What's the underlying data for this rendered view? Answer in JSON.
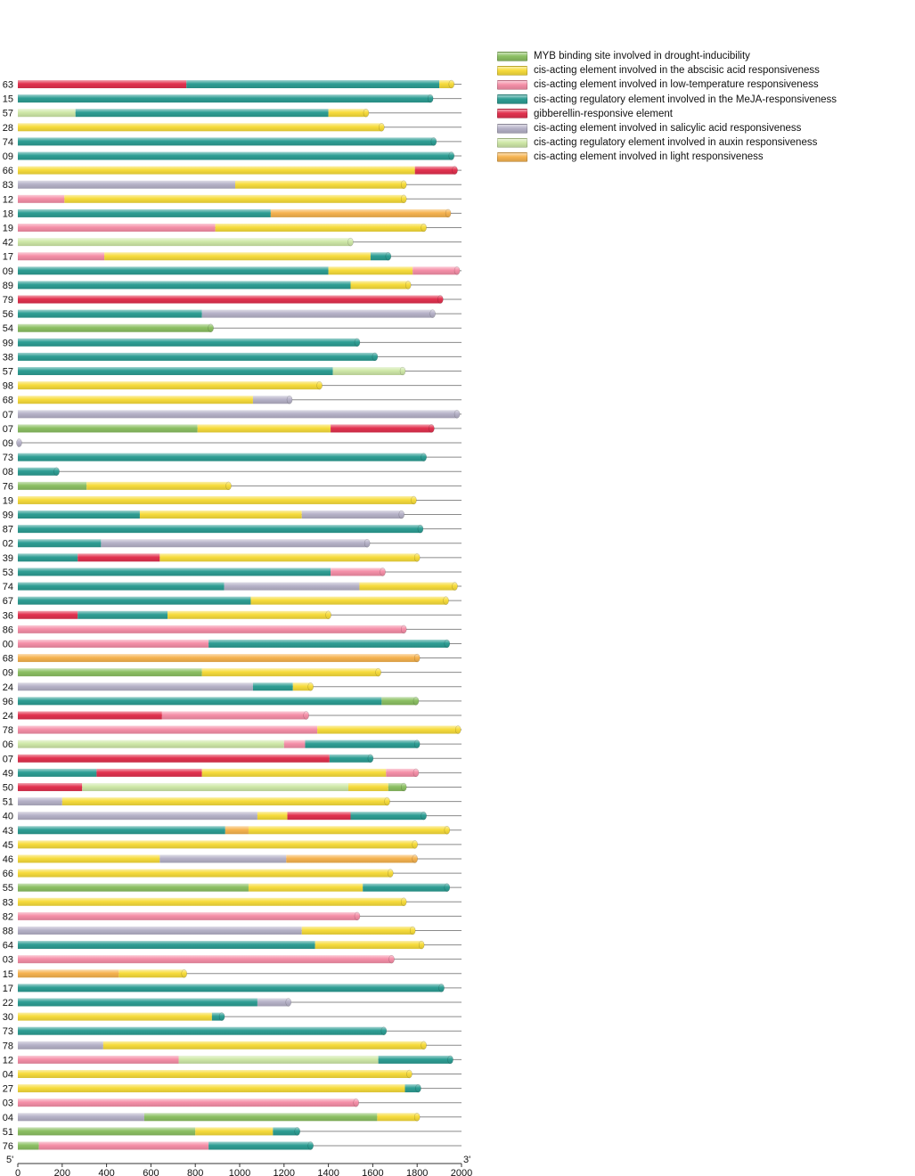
{
  "chart_data": {
    "type": "bar",
    "orientation": "horizontal-stacked-segments",
    "title": "",
    "xlabel": "",
    "ylabel": "",
    "xlim": [
      0,
      2000
    ],
    "x_ticks": [
      0,
      200,
      400,
      600,
      800,
      1000,
      1200,
      1400,
      1600,
      1800,
      2000
    ],
    "start_label": "5'",
    "end_label": "3'",
    "legend": [
      {
        "key": "myb",
        "label": "MYB binding site involved in drought-inducibility",
        "color": "#8cc063"
      },
      {
        "key": "aba",
        "label": "cis-acting element involved in the abscisic acid responsiveness",
        "color": "#f7dc3c"
      },
      {
        "key": "lt",
        "label": "cis-acting element involved in low-temperature responsiveness",
        "color": "#f58fa8"
      },
      {
        "key": "meja",
        "label": "cis-acting regulatory element involved in the MeJA-responsiveness",
        "color": "#2e9e94"
      },
      {
        "key": "ga",
        "label": "gibberellin-responsive element",
        "color": "#e2324f"
      },
      {
        "key": "sa",
        "label": "cis-acting element involved in salicylic acid responsiveness",
        "color": "#b6b2c8"
      },
      {
        "key": "aux",
        "label": "cis-acting regulatory element involved in auxin responsiveness",
        "color": "#cfe8a8"
      },
      {
        "key": "light",
        "label": "cis-acting element involved in light responsiveness",
        "color": "#f6b350"
      }
    ],
    "rows": [
      {
        "label": "63",
        "segments": [
          [
            "ga",
            0,
            760
          ],
          [
            "meja",
            760,
            1900
          ],
          [
            "aba",
            1900,
            1955
          ]
        ]
      },
      {
        "label": "15",
        "segments": [
          [
            "meja",
            0,
            1860
          ]
        ]
      },
      {
        "label": "57",
        "segments": [
          [
            "aux",
            0,
            260
          ],
          [
            "meja",
            260,
            1400
          ],
          [
            "aba",
            1400,
            1570
          ]
        ]
      },
      {
        "label": "28",
        "segments": [
          [
            "aba",
            0,
            1640
          ]
        ]
      },
      {
        "label": "74",
        "segments": [
          [
            "meja",
            0,
            1875
          ]
        ]
      },
      {
        "label": "09",
        "segments": [
          [
            "meja",
            0,
            1955
          ]
        ]
      },
      {
        "label": "66",
        "segments": [
          [
            "aba",
            0,
            1790
          ],
          [
            "ga",
            1790,
            1970
          ]
        ]
      },
      {
        "label": "83",
        "segments": [
          [
            "sa",
            0,
            980
          ],
          [
            "aba",
            980,
            1740
          ]
        ]
      },
      {
        "label": "12",
        "segments": [
          [
            "lt",
            0,
            210
          ],
          [
            "aba",
            210,
            1740
          ]
        ]
      },
      {
        "label": "18",
        "segments": [
          [
            "meja",
            0,
            1140
          ],
          [
            "light",
            1140,
            1940
          ]
        ]
      },
      {
        "label": "19",
        "segments": [
          [
            "lt",
            0,
            890
          ],
          [
            "aba",
            890,
            1830
          ]
        ]
      },
      {
        "label": "42",
        "segments": [
          [
            "aux",
            0,
            1500
          ]
        ]
      },
      {
        "label": "17",
        "segments": [
          [
            "lt",
            0,
            390
          ],
          [
            "aba",
            390,
            1590
          ],
          [
            "meja",
            1590,
            1670
          ]
        ]
      },
      {
        "label": "09",
        "segments": [
          [
            "meja",
            0,
            1400
          ],
          [
            "aba",
            1400,
            1780
          ],
          [
            "lt",
            1780,
            1980
          ]
        ]
      },
      {
        "label": "89",
        "segments": [
          [
            "meja",
            0,
            1500
          ],
          [
            "aba",
            1500,
            1760
          ]
        ]
      },
      {
        "label": "79",
        "segments": [
          [
            "ga",
            0,
            1905
          ]
        ]
      },
      {
        "label": "56",
        "segments": [
          [
            "meja",
            0,
            830
          ],
          [
            "sa",
            830,
            1870
          ]
        ]
      },
      {
        "label": "54",
        "segments": [
          [
            "myb",
            0,
            870
          ]
        ]
      },
      {
        "label": "99",
        "segments": [
          [
            "meja",
            0,
            1530
          ]
        ]
      },
      {
        "label": "38",
        "segments": [
          [
            "meja",
            0,
            1610
          ]
        ]
      },
      {
        "label": "57",
        "segments": [
          [
            "meja",
            0,
            1420
          ],
          [
            "aux",
            1420,
            1735
          ]
        ]
      },
      {
        "label": "98",
        "segments": [
          [
            "aba",
            0,
            1360
          ]
        ]
      },
      {
        "label": "68",
        "segments": [
          [
            "aba",
            0,
            1060
          ],
          [
            "sa",
            1060,
            1225
          ]
        ]
      },
      {
        "label": "07",
        "segments": [
          [
            "sa",
            0,
            1980
          ]
        ]
      },
      {
        "label": "07",
        "segments": [
          [
            "myb",
            0,
            810
          ],
          [
            "aba",
            810,
            1410
          ],
          [
            "ga",
            1410,
            1865
          ]
        ]
      },
      {
        "label": "09",
        "segments": [
          [
            "sa",
            0,
            5
          ]
        ]
      },
      {
        "label": "73",
        "segments": [
          [
            "meja",
            0,
            1830
          ]
        ]
      },
      {
        "label": "08",
        "segments": [
          [
            "meja",
            0,
            175
          ]
        ]
      },
      {
        "label": "76",
        "segments": [
          [
            "myb",
            0,
            310
          ],
          [
            "aba",
            310,
            950
          ]
        ]
      },
      {
        "label": "19",
        "segments": [
          [
            "aba",
            0,
            1785
          ]
        ]
      },
      {
        "label": "99",
        "segments": [
          [
            "meja",
            0,
            550
          ],
          [
            "aba",
            550,
            1280
          ],
          [
            "sa",
            1280,
            1730
          ]
        ]
      },
      {
        "label": "87",
        "segments": [
          [
            "meja",
            0,
            1815
          ]
        ]
      },
      {
        "label": "02",
        "segments": [
          [
            "meja",
            0,
            375
          ],
          [
            "sa",
            375,
            1575
          ]
        ]
      },
      {
        "label": "39",
        "segments": [
          [
            "meja",
            0,
            270
          ],
          [
            "ga",
            270,
            640
          ],
          [
            "aba",
            640,
            1800
          ]
        ]
      },
      {
        "label": "53",
        "segments": [
          [
            "meja",
            0,
            1410
          ],
          [
            "lt",
            1410,
            1645
          ]
        ]
      },
      {
        "label": "74",
        "segments": [
          [
            "meja",
            0,
            930
          ],
          [
            "sa",
            930,
            1540
          ],
          [
            "aba",
            1540,
            1970
          ]
        ]
      },
      {
        "label": "67",
        "segments": [
          [
            "meja",
            0,
            1050
          ],
          [
            "aba",
            1050,
            1930
          ]
        ]
      },
      {
        "label": "36",
        "segments": [
          [
            "ga",
            0,
            270
          ],
          [
            "meja",
            270,
            675
          ],
          [
            "aba",
            675,
            1400
          ]
        ]
      },
      {
        "label": "86",
        "segments": [
          [
            "lt",
            0,
            1740
          ]
        ]
      },
      {
        "label": "00",
        "segments": [
          [
            "lt",
            0,
            860
          ],
          [
            "meja",
            860,
            1935
          ]
        ]
      },
      {
        "label": "68",
        "segments": [
          [
            "light",
            0,
            1800
          ]
        ]
      },
      {
        "label": "09",
        "segments": [
          [
            "myb",
            0,
            830
          ],
          [
            "aba",
            830,
            1625
          ]
        ]
      },
      {
        "label": "24",
        "segments": [
          [
            "sa",
            0,
            1060
          ],
          [
            "meja",
            1060,
            1240
          ],
          [
            "aba",
            1240,
            1320
          ]
        ]
      },
      {
        "label": "96",
        "segments": [
          [
            "meja",
            0,
            1640
          ],
          [
            "myb",
            1640,
            1795
          ]
        ]
      },
      {
        "label": "24",
        "segments": [
          [
            "ga",
            0,
            650
          ],
          [
            "lt",
            650,
            1300
          ]
        ]
      },
      {
        "label": "78",
        "segments": [
          [
            "lt",
            0,
            1350
          ],
          [
            "aba",
            1350,
            1985
          ]
        ]
      },
      {
        "label": "06",
        "segments": [
          [
            "aux",
            0,
            1200
          ],
          [
            "lt",
            1200,
            1295
          ],
          [
            "meja",
            1295,
            1800
          ]
        ]
      },
      {
        "label": "07",
        "segments": [
          [
            "ga",
            0,
            1405
          ],
          [
            "meja",
            1405,
            1590
          ]
        ]
      },
      {
        "label": "49",
        "segments": [
          [
            "meja",
            0,
            355
          ],
          [
            "ga",
            355,
            830
          ],
          [
            "aba",
            830,
            1660
          ],
          [
            "lt",
            1660,
            1795
          ]
        ]
      },
      {
        "label": "50",
        "segments": [
          [
            "ga",
            0,
            290
          ],
          [
            "aux",
            290,
            1490
          ],
          [
            "aba",
            1490,
            1670
          ],
          [
            "myb",
            1670,
            1740
          ]
        ]
      },
      {
        "label": "51",
        "segments": [
          [
            "sa",
            0,
            200
          ],
          [
            "aba",
            200,
            1665
          ]
        ]
      },
      {
        "label": "40",
        "segments": [
          [
            "sa",
            0,
            1080
          ],
          [
            "aba",
            1080,
            1215
          ],
          [
            "ga",
            1215,
            1500
          ],
          [
            "meja",
            1500,
            1830
          ]
        ]
      },
      {
        "label": "43",
        "segments": [
          [
            "meja",
            0,
            935
          ],
          [
            "light",
            935,
            1040
          ],
          [
            "aba",
            1040,
            1935
          ]
        ]
      },
      {
        "label": "45",
        "segments": [
          [
            "aba",
            0,
            1790
          ]
        ]
      },
      {
        "label": "46",
        "segments": [
          [
            "aba",
            0,
            640
          ],
          [
            "sa",
            640,
            1210
          ],
          [
            "light",
            1210,
            1790
          ]
        ]
      },
      {
        "label": "66",
        "segments": [
          [
            "aba",
            0,
            1680
          ]
        ]
      },
      {
        "label": "55",
        "segments": [
          [
            "myb",
            0,
            1040
          ],
          [
            "aba",
            1040,
            1555
          ],
          [
            "meja",
            1555,
            1935
          ]
        ]
      },
      {
        "label": "83",
        "segments": [
          [
            "aba",
            0,
            1740
          ]
        ]
      },
      {
        "label": "82",
        "segments": [
          [
            "lt",
            0,
            1530
          ]
        ]
      },
      {
        "label": "88",
        "segments": [
          [
            "sa",
            0,
            1280
          ],
          [
            "aba",
            1280,
            1780
          ]
        ]
      },
      {
        "label": "64",
        "segments": [
          [
            "meja",
            0,
            1340
          ],
          [
            "aba",
            1340,
            1820
          ]
        ]
      },
      {
        "label": "03",
        "segments": [
          [
            "lt",
            0,
            1685
          ]
        ]
      },
      {
        "label": "15",
        "segments": [
          [
            "light",
            0,
            455
          ],
          [
            "aba",
            455,
            750
          ]
        ]
      },
      {
        "label": "17",
        "segments": [
          [
            "meja",
            0,
            1910
          ]
        ]
      },
      {
        "label": "22",
        "segments": [
          [
            "meja",
            0,
            1080
          ],
          [
            "sa",
            1080,
            1220
          ]
        ]
      },
      {
        "label": "30",
        "segments": [
          [
            "aba",
            0,
            875
          ],
          [
            "meja",
            875,
            920
          ]
        ]
      },
      {
        "label": "73",
        "segments": [
          [
            "meja",
            0,
            1650
          ]
        ]
      },
      {
        "label": "78",
        "segments": [
          [
            "sa",
            0,
            385
          ],
          [
            "aba",
            385,
            1830
          ]
        ]
      },
      {
        "label": "12",
        "segments": [
          [
            "lt",
            0,
            725
          ],
          [
            "aux",
            725,
            1625
          ],
          [
            "meja",
            1625,
            1950
          ]
        ]
      },
      {
        "label": "04",
        "segments": [
          [
            "aba",
            0,
            1765
          ]
        ]
      },
      {
        "label": "27",
        "segments": [
          [
            "aba",
            0,
            1745
          ],
          [
            "meja",
            1745,
            1805
          ]
        ]
      },
      {
        "label": "03",
        "segments": [
          [
            "lt",
            0,
            1525
          ]
        ]
      },
      {
        "label": "04",
        "segments": [
          [
            "sa",
            0,
            570
          ],
          [
            "myb",
            570,
            1620
          ],
          [
            "aba",
            1620,
            1800
          ]
        ]
      },
      {
        "label": "51",
        "segments": [
          [
            "myb",
            0,
            800
          ],
          [
            "aba",
            800,
            1150
          ],
          [
            "meja",
            1150,
            1260
          ]
        ]
      },
      {
        "label": "76",
        "segments": [
          [
            "myb",
            0,
            95
          ],
          [
            "lt",
            95,
            860
          ],
          [
            "meja",
            860,
            1320
          ]
        ]
      }
    ]
  }
}
